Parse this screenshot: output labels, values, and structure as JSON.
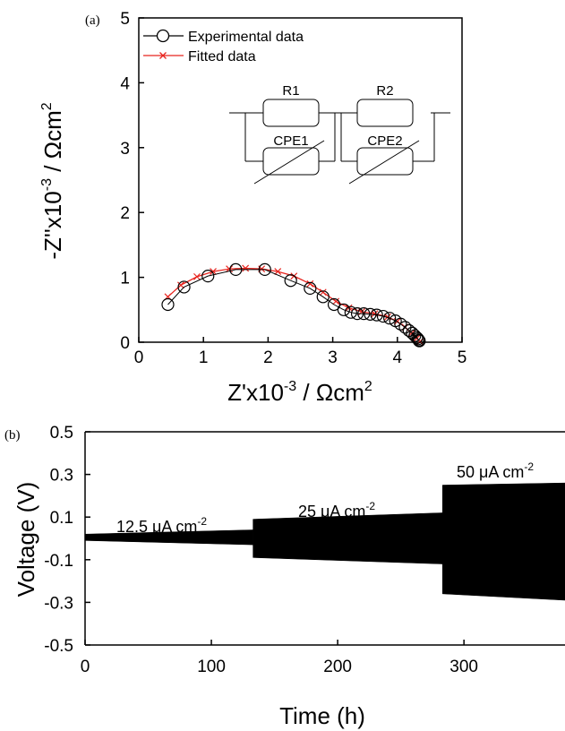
{
  "panel_a": {
    "label": "(a)",
    "legend": {
      "experimental": "Experimental data",
      "fitted": "Fitted data"
    },
    "circuit": {
      "r1": "R1",
      "cpe1": "CPE1",
      "r2": "R2",
      "cpe2": "CPE2"
    },
    "colors": {
      "experimental": "#000000",
      "fitted": "#e8251f"
    }
  },
  "panel_b": {
    "label": "(b)",
    "annotations": {
      "a1_main": "12.5 μA cm",
      "a1_sup": "-2",
      "a2_main": "25 μA cm",
      "a2_sup": "-2",
      "a3_main": "50 μA cm",
      "a3_sup": "-2"
    }
  },
  "chart_data": [
    {
      "type": "scatter",
      "xlabel": "Z'x10^-3 / Ωcm^2",
      "ylabel": "-Z''x10^-3 / Ωcm^2",
      "xlim": [
        0,
        5
      ],
      "ylim": [
        0,
        5
      ],
      "xticks": [
        "0",
        "1",
        "2",
        "3",
        "4",
        "5"
      ],
      "yticks": [
        "0",
        "1",
        "2",
        "3",
        "4",
        "5"
      ],
      "legend_position": "top-left",
      "series": [
        {
          "name": "Experimental data",
          "marker": "circle",
          "x": [
            0.45,
            0.7,
            1.07,
            1.5,
            1.95,
            2.35,
            2.65,
            2.85,
            3.02,
            3.17,
            3.28,
            3.38,
            3.48,
            3.58,
            3.68,
            3.78,
            3.88,
            3.97,
            4.05,
            4.12,
            4.18,
            4.23,
            4.27,
            4.3,
            4.32,
            4.33,
            4.34
          ],
          "y": [
            0.58,
            0.85,
            1.02,
            1.12,
            1.12,
            0.95,
            0.83,
            0.7,
            0.58,
            0.5,
            0.46,
            0.44,
            0.44,
            0.43,
            0.42,
            0.4,
            0.37,
            0.33,
            0.28,
            0.23,
            0.18,
            0.14,
            0.1,
            0.07,
            0.05,
            0.03,
            0.02
          ]
        },
        {
          "name": "Fitted data",
          "marker": "x",
          "x": [
            0.45,
            0.65,
            0.9,
            1.15,
            1.4,
            1.65,
            1.9,
            2.15,
            2.4,
            2.65,
            2.85,
            3.05,
            3.25,
            3.45,
            3.65,
            3.85,
            4.0,
            4.12,
            4.22,
            4.3,
            4.35
          ],
          "y": [
            0.7,
            0.88,
            1.01,
            1.09,
            1.13,
            1.14,
            1.13,
            1.09,
            1.02,
            0.9,
            0.77,
            0.63,
            0.53,
            0.47,
            0.44,
            0.39,
            0.32,
            0.23,
            0.14,
            0.06,
            0.01
          ]
        }
      ]
    },
    {
      "type": "area",
      "xlabel": "Time (h)",
      "ylabel": "Voltage (V)",
      "xlim": [
        0,
        380
      ],
      "ylim": [
        -0.5,
        0.5
      ],
      "xticks": [
        "0",
        "100",
        "200",
        "300"
      ],
      "yticks": [
        "0.5",
        "0.3",
        "0.1",
        "-0.1",
        "-0.3",
        "-0.5"
      ],
      "series": [
        {
          "name": "12.5 μA cm-2",
          "time": [
            0,
            133
          ],
          "upper": [
            0.02,
            0.04
          ],
          "lower": [
            -0.01,
            -0.03
          ]
        },
        {
          "name": "25 μA cm-2",
          "time": [
            133,
            283
          ],
          "upper": [
            0.09,
            0.12
          ],
          "lower": [
            -0.09,
            -0.12
          ]
        },
        {
          "name": "50 μA cm-2",
          "time": [
            283,
            380
          ],
          "upper": [
            0.25,
            0.26
          ],
          "lower": [
            -0.26,
            -0.29
          ]
        }
      ]
    }
  ]
}
